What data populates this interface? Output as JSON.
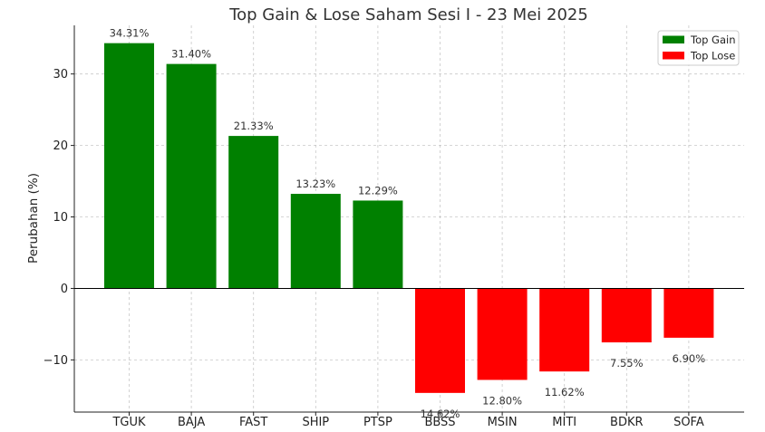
{
  "chart_data": {
    "type": "bar",
    "title": "Top Gain & Lose Saham Sesi I - 23 Mei 2025",
    "xlabel": "",
    "ylabel": "Perubahan (%)",
    "ylim": [
      -17.3,
      36.8
    ],
    "yticks": [
      -10,
      0,
      10,
      20,
      30
    ],
    "ytick_labels": [
      "−10",
      "0",
      "10",
      "20",
      "30"
    ],
    "grid": true,
    "legend_position": "top-right",
    "categories": [
      "TGUK",
      "BAJA",
      "FAST",
      "SHIP",
      "PTSP",
      "BBSS",
      "MSIN",
      "MITI",
      "BDKR",
      "SOFA"
    ],
    "values": [
      34.31,
      31.4,
      21.33,
      13.23,
      12.29,
      -14.62,
      -12.8,
      -11.62,
      -7.55,
      -6.9
    ],
    "data_labels": [
      "34.31%",
      "31.40%",
      "21.33%",
      "13.23%",
      "12.29%",
      "14.62%",
      "12.80%",
      "11.62%",
      "7.55%",
      "6.90%"
    ],
    "series": [
      {
        "name": "Top Gain",
        "color": "#008000",
        "categories": [
          "TGUK",
          "BAJA",
          "FAST",
          "SHIP",
          "PTSP"
        ]
      },
      {
        "name": "Top Lose",
        "color": "#ff0000",
        "categories": [
          "BBSS",
          "MSIN",
          "MITI",
          "BDKR",
          "SOFA"
        ]
      }
    ]
  }
}
